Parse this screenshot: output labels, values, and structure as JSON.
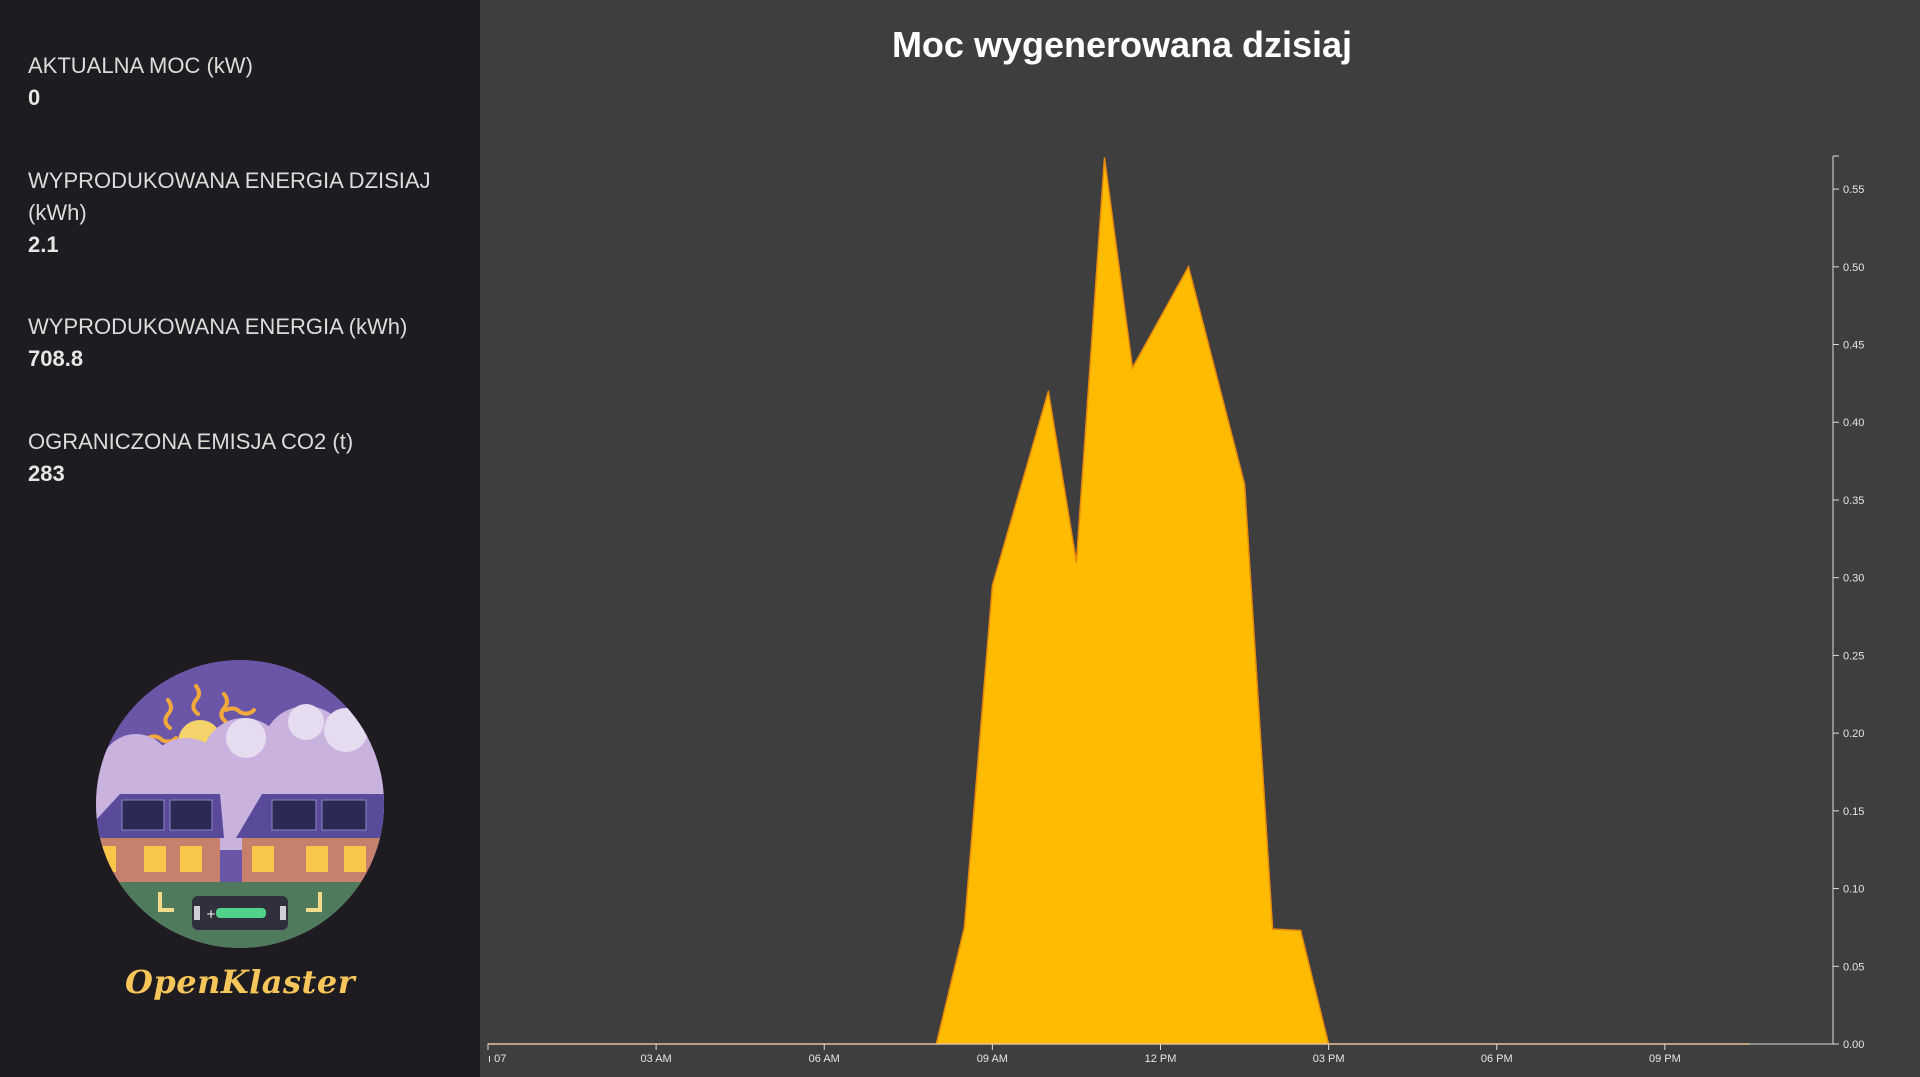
{
  "sidebar": {
    "stats": [
      {
        "label": "AKTUALNA MOC (kW)",
        "value": "0"
      },
      {
        "label": "WYPRODUKOWANA ENERGIA DZISIAJ (kWh)",
        "value": "2.1"
      },
      {
        "label": "WYPRODUKOWANA ENERGIA (kWh)",
        "value": "708.8"
      },
      {
        "label": "OGRANICZONA EMISJA CO2 (t)",
        "value": "283"
      }
    ],
    "brand": "OpenKlaster",
    "logo_icon": "solar-houses-battery-illustration"
  },
  "colors": {
    "sidebar_bg": "#1e1c20",
    "chart_bg": "#3e3e3e",
    "area_fill": "#ffbb00",
    "area_stroke": "#e8890c",
    "brand": "#f7c65a"
  },
  "chart_data": {
    "type": "area",
    "title": "Moc wygenerowana dzisiaj",
    "xlabel": "",
    "ylabel": "",
    "x_tick_labels": [
      "ı 07",
      "03 AM",
      "06 AM",
      "09 AM",
      "12 PM",
      "03 PM",
      "06 PM",
      "09 PM"
    ],
    "x_ticks_hours": [
      0,
      3,
      6,
      9,
      12,
      15,
      18,
      21
    ],
    "xlim_hours": [
      0,
      24
    ],
    "y_tick_labels": [
      "0.00",
      "0.05",
      "0.10",
      "0.15",
      "0.20",
      "0.25",
      "0.30",
      "0.35",
      "0.40",
      "0.45",
      "0.50",
      "0.55"
    ],
    "ylim": [
      0,
      0.57
    ],
    "y_axis_side": "right",
    "grid": false,
    "legend": "none",
    "series": [
      {
        "x_hours": [
          0,
          8.0,
          8.5,
          9.0,
          10.0,
          10.5,
          11.0,
          11.5,
          12.5,
          13.5,
          14.0,
          14.5,
          15.0,
          22.5
        ],
        "values": [
          0.0,
          0.0,
          0.075,
          0.295,
          0.42,
          0.31,
          0.57,
          0.435,
          0.5,
          0.36,
          0.074,
          0.073,
          0.0,
          0.0
        ]
      }
    ]
  }
}
